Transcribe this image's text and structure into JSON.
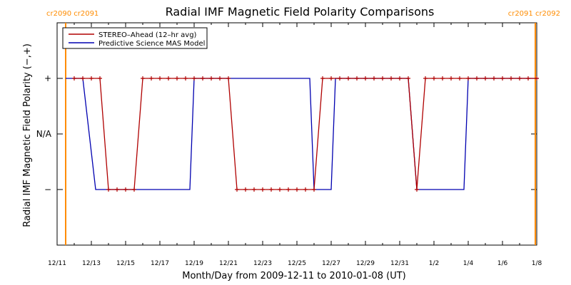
{
  "chart_data": {
    "type": "line",
    "title": "Radial IMF Magnetic Field Polarity Comparisons",
    "xlabel": "Month/Day from 2009-12-11 to 2010-01-08 (UT)",
    "ylabel": "Radial IMF Magnetic Field Polarity (−,+)",
    "xlim": [
      "2009-12-11",
      "2010-01-08"
    ],
    "ylim": [
      -2,
      2
    ],
    "x_tick_labels": [
      "12/11",
      "12/13",
      "12/15",
      "12/17",
      "12/19",
      "12/21",
      "12/23",
      "12/25",
      "12/27",
      "12/29",
      "12/31",
      "1/2",
      "1/4",
      "1/6",
      "1/8"
    ],
    "y_ticks": [
      {
        "value": 1,
        "label": "+"
      },
      {
        "value": 0,
        "label": "N/A"
      },
      {
        "value": -1,
        "label": "−"
      }
    ],
    "legend_position": "top-left",
    "series": [
      {
        "name": "STEREO–Ahead (12–hr avg)",
        "color": "#b00000",
        "marker": "+",
        "points": [
          [
            "2009-12-12 00:00",
            1
          ],
          [
            "2009-12-12 12:00",
            1
          ],
          [
            "2009-12-13 00:00",
            1
          ],
          [
            "2009-12-13 12:00",
            1
          ],
          [
            "2009-12-14 00:00",
            -1
          ],
          [
            "2009-12-14 12:00",
            -1
          ],
          [
            "2009-12-15 00:00",
            -1
          ],
          [
            "2009-12-15 12:00",
            -1
          ],
          [
            "2009-12-16 00:00",
            1
          ],
          [
            "2009-12-16 12:00",
            1
          ],
          [
            "2009-12-17 00:00",
            1
          ],
          [
            "2009-12-17 12:00",
            1
          ],
          [
            "2009-12-18 00:00",
            1
          ],
          [
            "2009-12-18 12:00",
            1
          ],
          [
            "2009-12-19 00:00",
            1
          ],
          [
            "2009-12-19 12:00",
            1
          ],
          [
            "2009-12-20 00:00",
            1
          ],
          [
            "2009-12-20 12:00",
            1
          ],
          [
            "2009-12-21 00:00",
            1
          ],
          [
            "2009-12-21 12:00",
            -1
          ],
          [
            "2009-12-22 00:00",
            -1
          ],
          [
            "2009-12-22 12:00",
            -1
          ],
          [
            "2009-12-23 00:00",
            -1
          ],
          [
            "2009-12-23 12:00",
            -1
          ],
          [
            "2009-12-24 00:00",
            -1
          ],
          [
            "2009-12-24 12:00",
            -1
          ],
          [
            "2009-12-25 00:00",
            -1
          ],
          [
            "2009-12-25 12:00",
            -1
          ],
          [
            "2009-12-26 00:00",
            -1
          ],
          [
            "2009-12-26 12:00",
            1
          ],
          [
            "2009-12-27 00:00",
            1
          ],
          [
            "2009-12-27 12:00",
            1
          ],
          [
            "2009-12-28 00:00",
            1
          ],
          [
            "2009-12-28 12:00",
            1
          ],
          [
            "2009-12-29 00:00",
            1
          ],
          [
            "2009-12-29 12:00",
            1
          ],
          [
            "2009-12-30 00:00",
            1
          ],
          [
            "2009-12-30 12:00",
            1
          ],
          [
            "2009-12-31 00:00",
            1
          ],
          [
            "2009-12-31 12:00",
            1
          ],
          [
            "2010-01-01 00:00",
            -1
          ],
          [
            "2010-01-01 12:00",
            1
          ],
          [
            "2010-01-02 00:00",
            1
          ],
          [
            "2010-01-02 12:00",
            1
          ],
          [
            "2010-01-03 00:00",
            1
          ],
          [
            "2010-01-03 12:00",
            1
          ],
          [
            "2010-01-04 00:00",
            1
          ],
          [
            "2010-01-04 12:00",
            1
          ],
          [
            "2010-01-05 00:00",
            1
          ],
          [
            "2010-01-05 12:00",
            1
          ],
          [
            "2010-01-06 00:00",
            1
          ],
          [
            "2010-01-06 12:00",
            1
          ],
          [
            "2010-01-07 00:00",
            1
          ],
          [
            "2010-01-07 12:00",
            1
          ],
          [
            "2010-01-08 00:00",
            1
          ]
        ]
      },
      {
        "name": "Predictive Science MAS Model",
        "color": "#0000b0",
        "marker": "none",
        "points": [
          [
            "2009-12-11 12:00",
            1
          ],
          [
            "2009-12-12 12:00",
            1
          ],
          [
            "2009-12-13 06:00",
            -1
          ],
          [
            "2009-12-18 18:00",
            -1
          ],
          [
            "2009-12-19 00:00",
            1
          ],
          [
            "2009-12-25 18:00",
            1
          ],
          [
            "2009-12-26 00:00",
            -1
          ],
          [
            "2009-12-27 00:00",
            -1
          ],
          [
            "2009-12-27 06:00",
            1
          ],
          [
            "2009-12-31 12:00",
            1
          ],
          [
            "2010-01-01 00:00",
            -1
          ],
          [
            "2010-01-03 18:00",
            -1
          ],
          [
            "2010-01-04 00:00",
            1
          ],
          [
            "2010-01-08 03:00",
            1
          ]
        ]
      }
    ],
    "carrington_markers": [
      {
        "date": "2009-12-11 12:00",
        "label": "cr2090 cr2091",
        "color": "#ff8c00"
      },
      {
        "date": "2010-01-07 22:00",
        "label": "cr2091 cr2092",
        "color": "#ff8c00"
      }
    ]
  }
}
